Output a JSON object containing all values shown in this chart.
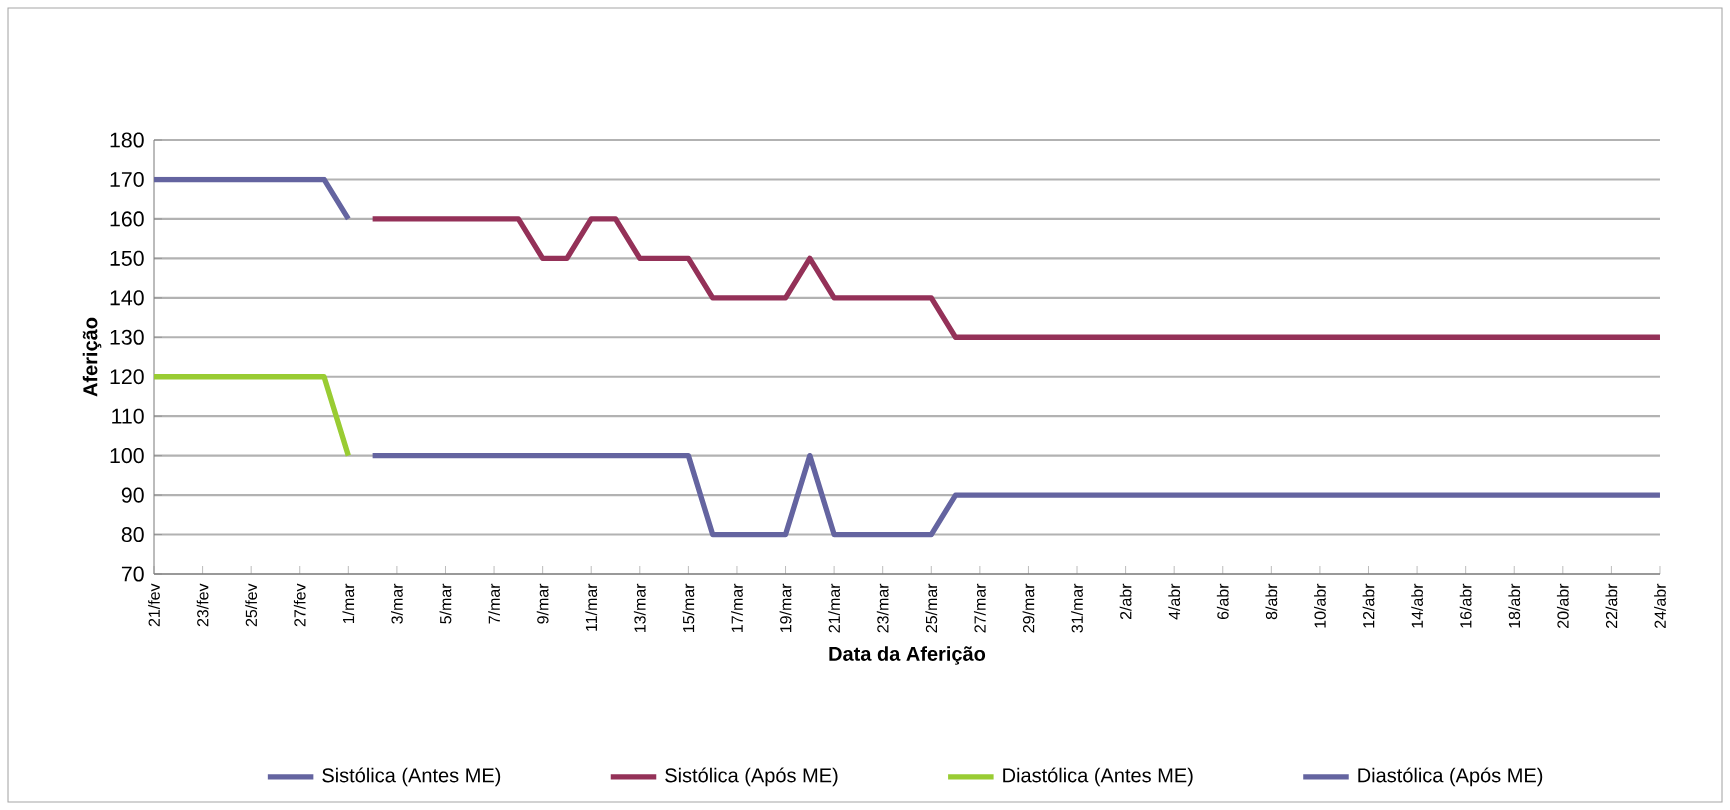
{
  "chart_data": {
    "type": "line",
    "xlabel": "Data da Aferição",
    "ylabel": "Aferição",
    "categories": [
      "21/fev",
      null,
      "23/fev",
      null,
      "25/fev",
      null,
      "27/fev",
      null,
      "1/mar",
      null,
      "3/mar",
      null,
      "5/mar",
      null,
      "7/mar",
      null,
      "9/mar",
      null,
      "11/mar",
      null,
      "13/mar",
      null,
      "15/mar",
      null,
      "17/mar",
      null,
      "19/mar",
      null,
      "21/mar",
      null,
      "23/mar",
      null,
      "25/mar",
      null,
      "27/mar",
      null,
      "29/mar",
      null,
      "31/mar",
      null,
      "2/abr",
      null,
      "4/abr",
      null,
      "6/abr",
      null,
      "8/abr",
      null,
      "10/abr",
      null,
      "12/abr",
      null,
      "14/abr",
      null,
      "16/abr",
      null,
      "18/abr",
      null,
      "20/abr",
      null,
      "22/abr",
      null,
      "24/abr"
    ],
    "series": [
      {
        "name": "Sistólica (Antes ME)",
        "color": "#6464a0",
        "values": [
          170,
          170,
          170,
          170,
          170,
          170,
          170,
          170,
          160,
          null,
          null,
          null,
          null,
          null,
          null,
          null,
          null,
          null,
          null,
          null,
          null,
          null,
          null,
          null,
          null,
          null,
          null,
          null,
          null,
          null,
          null,
          null,
          null,
          null,
          null,
          null,
          null,
          null,
          null,
          null,
          null,
          null,
          null,
          null,
          null,
          null,
          null,
          null,
          null,
          null,
          null,
          null,
          null,
          null,
          null,
          null,
          null,
          null,
          null,
          null,
          null,
          null,
          null
        ]
      },
      {
        "name": "Sistólica (Após ME)",
        "color": "#943158",
        "values": [
          null,
          null,
          null,
          null,
          null,
          null,
          null,
          null,
          null,
          160,
          160,
          160,
          160,
          160,
          160,
          160,
          150,
          150,
          160,
          160,
          150,
          150,
          150,
          140,
          140,
          140,
          140,
          150,
          140,
          140,
          140,
          140,
          140,
          130,
          130,
          130,
          130,
          130,
          130,
          130,
          130,
          130,
          130,
          130,
          130,
          130,
          130,
          130,
          130,
          130,
          130,
          130,
          130,
          130,
          130,
          130,
          130,
          130,
          130,
          130,
          130,
          130,
          130
        ]
      },
      {
        "name": "Diastólica (Antes ME)",
        "color": "#99cc33",
        "values": [
          120,
          120,
          120,
          120,
          120,
          120,
          120,
          120,
          100,
          null,
          null,
          null,
          null,
          null,
          null,
          null,
          null,
          null,
          null,
          null,
          null,
          null,
          null,
          null,
          null,
          null,
          null,
          null,
          null,
          null,
          null,
          null,
          null,
          null,
          null,
          null,
          null,
          null,
          null,
          null,
          null,
          null,
          null,
          null,
          null,
          null,
          null,
          null,
          null,
          null,
          null,
          null,
          null,
          null,
          null,
          null,
          null,
          null,
          null,
          null,
          null,
          null,
          null
        ]
      },
      {
        "name": "Diastólica (Após ME)",
        "color": "#6464a0",
        "values": [
          null,
          null,
          null,
          null,
          null,
          null,
          null,
          null,
          null,
          100,
          100,
          100,
          100,
          100,
          100,
          100,
          100,
          100,
          100,
          100,
          100,
          100,
          100,
          80,
          80,
          80,
          80,
          100,
          80,
          80,
          80,
          80,
          80,
          90,
          90,
          90,
          90,
          90,
          90,
          90,
          90,
          90,
          90,
          90,
          90,
          90,
          90,
          90,
          90,
          90,
          90,
          90,
          90,
          90,
          90,
          90,
          90,
          90,
          90,
          90,
          90,
          90,
          90
        ]
      }
    ],
    "ylim": [
      70,
      180
    ],
    "yticks": [
      70,
      80,
      90,
      100,
      110,
      120,
      130,
      140,
      150,
      160,
      170,
      180
    ],
    "grid": "y",
    "legend": "bottom",
    "marker": "none",
    "line_style": "solid"
  }
}
